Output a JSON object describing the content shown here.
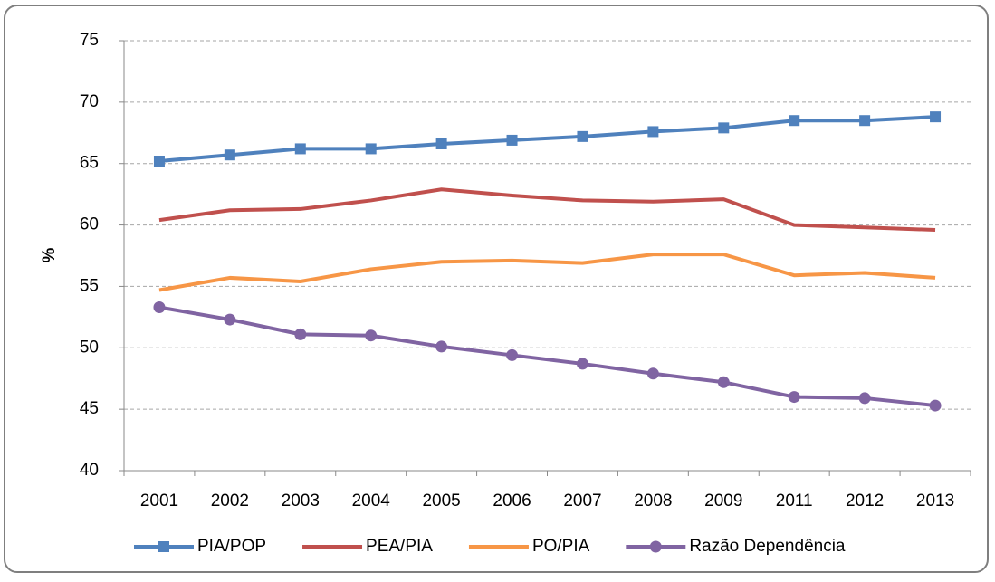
{
  "chart_data": {
    "type": "line",
    "ylabel": "%",
    "categories": [
      "2001",
      "2002",
      "2003",
      "2004",
      "2005",
      "2006",
      "2007",
      "2008",
      "2009",
      "2011",
      "2012",
      "2013"
    ],
    "series": [
      {
        "name": "PIA/POP",
        "color": "#4f81bd",
        "marker": "square",
        "values": [
          65.2,
          65.7,
          66.2,
          66.2,
          66.6,
          66.9,
          67.2,
          67.6,
          67.9,
          68.5,
          68.5,
          68.8
        ]
      },
      {
        "name": "PEA/PIA",
        "color": "#c0504d",
        "marker": "none",
        "values": [
          60.4,
          61.2,
          61.3,
          62.0,
          62.9,
          62.4,
          62.0,
          61.9,
          62.1,
          60.0,
          59.8,
          59.6
        ]
      },
      {
        "name": "PO/PIA",
        "color": "#f79646",
        "marker": "none",
        "values": [
          54.7,
          55.7,
          55.4,
          56.4,
          57.0,
          57.1,
          56.9,
          57.6,
          57.6,
          55.9,
          56.1,
          55.7
        ]
      },
      {
        "name": "Razão Dependência",
        "color": "#8064a2",
        "marker": "circle",
        "values": [
          53.3,
          52.3,
          51.1,
          51.0,
          50.1,
          49.4,
          48.7,
          47.9,
          47.2,
          46.0,
          45.9,
          45.3
        ]
      }
    ],
    "ylim": [
      40,
      75
    ],
    "yticks": [
      40,
      45,
      50,
      55,
      60,
      65,
      70,
      75
    ],
    "grid": true,
    "legend": "bottom"
  }
}
